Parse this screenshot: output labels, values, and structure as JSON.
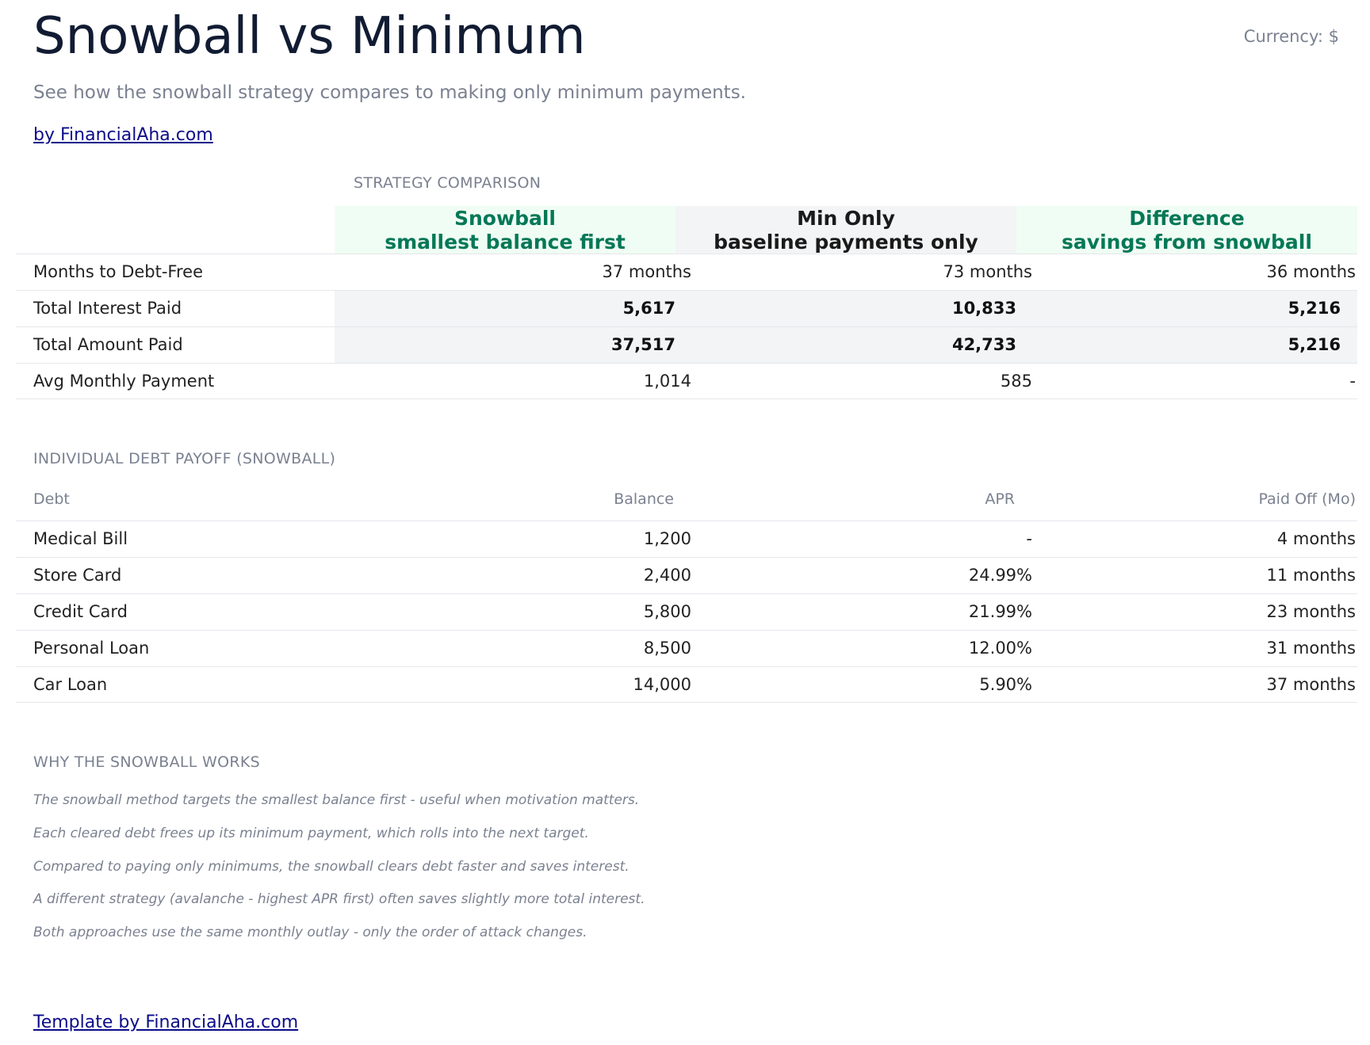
{
  "header": {
    "title": "Snowball vs Minimum",
    "currency": "Currency: $",
    "subtitle": "See how the snowball strategy compares to making only minimum payments.",
    "byline": "by FinancialAha.com"
  },
  "comparison": {
    "section_title": "STRATEGY COMPARISON",
    "columns": [
      {
        "name": "Snowball",
        "sub": "smallest balance first",
        "color": "#047857"
      },
      {
        "name": "Min Only",
        "sub": "baseline payments only",
        "color": "#1a1a1a"
      },
      {
        "name": "Difference",
        "sub": "savings from snowball",
        "color": "#047857"
      }
    ],
    "rows": [
      {
        "label": "Months to Debt-Free",
        "values": [
          "37 months",
          "73 months",
          "36 months"
        ]
      },
      {
        "label": "Total Interest Paid",
        "values": [
          "5,617",
          "10,833",
          "5,216"
        ]
      },
      {
        "label": "Total Amount Paid",
        "values": [
          "37,517",
          "42,733",
          "5,216"
        ]
      },
      {
        "label": "Avg Monthly Payment",
        "values": [
          "1,014",
          "585",
          "-"
        ]
      }
    ]
  },
  "debts": {
    "section_title": "INDIVIDUAL DEBT PAYOFF (SNOWBALL)",
    "headers": [
      "Debt",
      "Balance",
      "APR",
      "Paid Off (Mo)"
    ],
    "rows": [
      {
        "name": "Medical Bill",
        "balance": "1,200",
        "apr": "-",
        "paid_off": "4 months"
      },
      {
        "name": "Store Card",
        "balance": "2,400",
        "apr": "24.99%",
        "paid_off": "11 months"
      },
      {
        "name": "Credit Card",
        "balance": "5,800",
        "apr": "21.99%",
        "paid_off": "23 months"
      },
      {
        "name": "Personal Loan",
        "balance": "8,500",
        "apr": "12.00%",
        "paid_off": "31 months"
      },
      {
        "name": "Car Loan",
        "balance": "14,000",
        "apr": "5.90%",
        "paid_off": "37 months"
      }
    ]
  },
  "notes": {
    "section_title": "WHY THE SNOWBALL WORKS",
    "items": [
      "The snowball method targets the smallest balance first - useful when motivation matters.",
      "Each cleared debt frees up its minimum payment, which rolls into the next target.",
      "Compared to paying only minimums, the snowball clears debt faster and saves interest.",
      "A different strategy (avalanche - highest APR first) often saves slightly more total interest.",
      "Both approaches use the same monthly outlay - only the order of attack changes."
    ]
  },
  "footer": {
    "link": "Template by FinancialAha.com"
  }
}
